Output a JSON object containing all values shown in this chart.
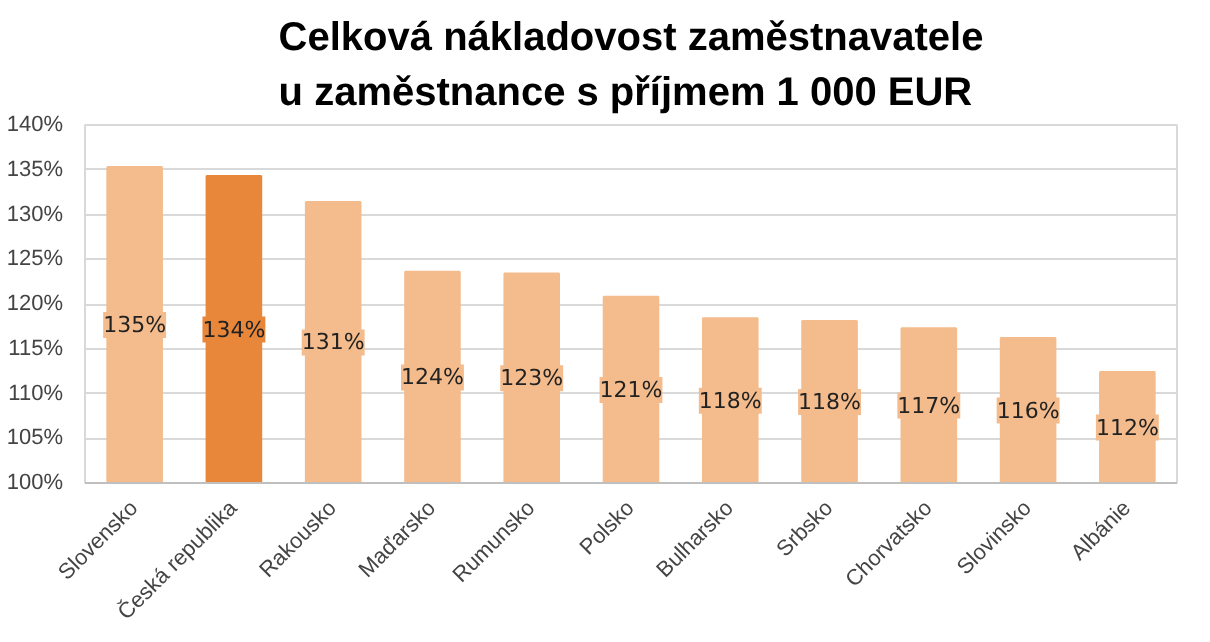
{
  "chart_data": {
    "type": "bar",
    "title": "Celková nákladovost zaměstnavatele\nu zaměstnance s příjmem 1 000 EUR",
    "categories": [
      "Slovensko",
      "Česká republika",
      "Rakousko",
      "Maďarsko",
      "Rumunsko",
      "Polsko",
      "Bulharsko",
      "Srbsko",
      "Chorvatsko",
      "Slovinsko",
      "Albánie"
    ],
    "values": [
      135.3,
      134.3,
      131.4,
      123.6,
      123.4,
      120.8,
      118.4,
      118.1,
      117.3,
      116.2,
      112.4
    ],
    "value_labels": [
      "135%",
      "134%",
      "131%",
      "124%",
      "123%",
      "121%",
      "118%",
      "118%",
      "117%",
      "116%",
      "112%"
    ],
    "colors": [
      "#f4bc8c",
      "#e8873a",
      "#f4bc8c",
      "#f4bc8c",
      "#f4bc8c",
      "#f4bc8c",
      "#f4bc8c",
      "#f4bc8c",
      "#f4bc8c",
      "#f4bc8c",
      "#f4bc8c"
    ],
    "ylim": [
      100,
      140
    ],
    "yticks": [
      {
        "value": 100,
        "label": "100%"
      },
      {
        "value": 105,
        "label": "105%"
      },
      {
        "value": 110,
        "label": "110%"
      },
      {
        "value": 115,
        "label": "115%"
      },
      {
        "value": 120,
        "label": "120%"
      },
      {
        "value": 125,
        "label": "125%"
      },
      {
        "value": 130,
        "label": "130%"
      },
      {
        "value": 135,
        "label": "135%"
      },
      {
        "value": 140,
        "label": "140%"
      }
    ],
    "grid": "y"
  }
}
